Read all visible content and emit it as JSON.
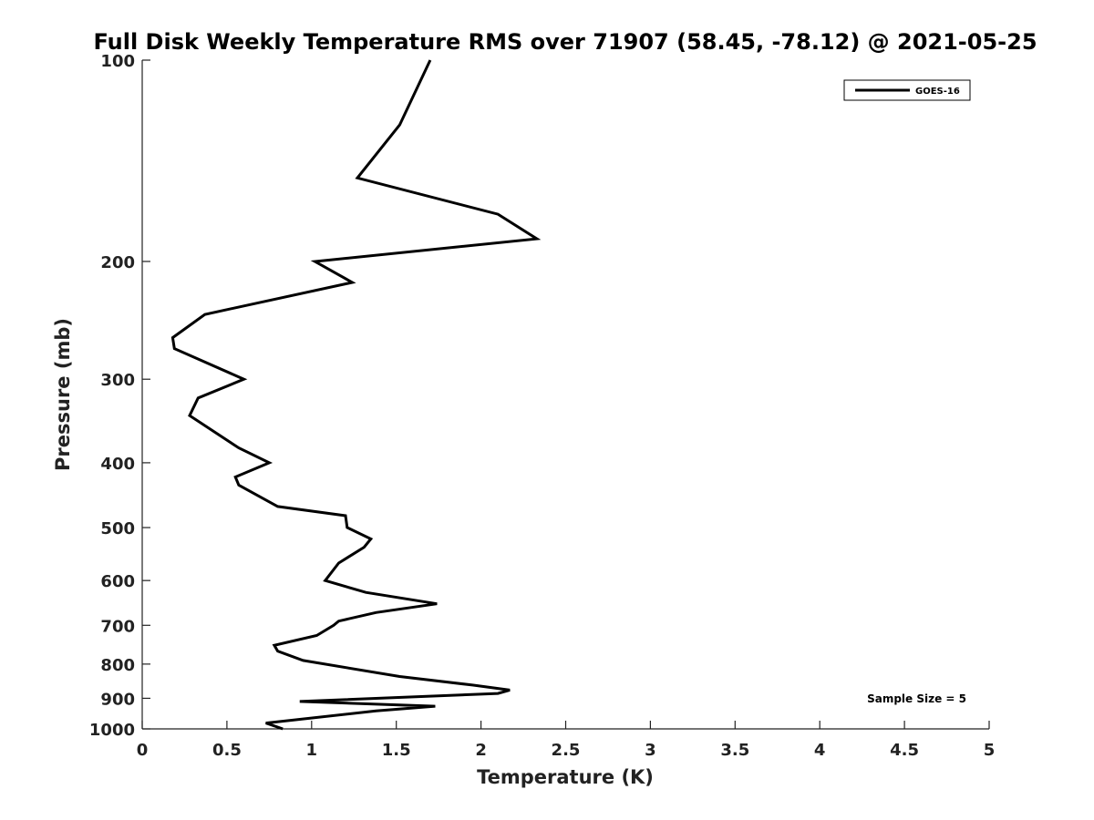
{
  "chart_data": {
    "type": "line",
    "title": "Full Disk Weekly Temperature RMS over 71907 (58.45, -78.12) @ 2021-05-25",
    "xlabel": "Temperature (K)",
    "ylabel": "Pressure (mb)",
    "xlim": [
      0,
      5
    ],
    "ylim": [
      1000,
      100
    ],
    "yscale": "log",
    "xticks": [
      0,
      0.5,
      1,
      1.5,
      2,
      2.5,
      3,
      3.5,
      4,
      4.5,
      5
    ],
    "xtick_labels": [
      "0",
      "0.5",
      "1",
      "1.5",
      "2",
      "2.5",
      "3",
      "3.5",
      "4",
      "4.5",
      "5"
    ],
    "yticks": [
      100,
      200,
      300,
      400,
      500,
      600,
      700,
      800,
      900,
      1000
    ],
    "ytick_labels": [
      "100",
      "200",
      "300",
      "400",
      "500",
      "600",
      "700",
      "800",
      "900",
      "1000"
    ],
    "legend_position": "top-right",
    "grid": false,
    "series": [
      {
        "name": "GOES-16",
        "color": "#000000",
        "points": [
          [
            1.7,
            100
          ],
          [
            1.52,
            125
          ],
          [
            1.27,
            150
          ],
          [
            2.1,
            170
          ],
          [
            2.33,
            185
          ],
          [
            1.02,
            200
          ],
          [
            1.24,
            215
          ],
          [
            0.37,
            240
          ],
          [
            0.18,
            260
          ],
          [
            0.19,
            270
          ],
          [
            0.6,
            300
          ],
          [
            0.33,
            320
          ],
          [
            0.28,
            340
          ],
          [
            0.57,
            380
          ],
          [
            0.75,
            400
          ],
          [
            0.55,
            420
          ],
          [
            0.57,
            432
          ],
          [
            0.8,
            465
          ],
          [
            1.2,
            480
          ],
          [
            1.21,
            500
          ],
          [
            1.35,
            520
          ],
          [
            1.31,
            535
          ],
          [
            1.16,
            565
          ],
          [
            1.08,
            600
          ],
          [
            1.32,
            625
          ],
          [
            1.74,
            650
          ],
          [
            1.38,
            670
          ],
          [
            1.16,
            690
          ],
          [
            1.13,
            700
          ],
          [
            1.03,
            725
          ],
          [
            0.78,
            750
          ],
          [
            0.8,
            765
          ],
          [
            0.95,
            790
          ],
          [
            1.52,
            835
          ],
          [
            1.95,
            860
          ],
          [
            2.17,
            875
          ],
          [
            2.1,
            885
          ],
          [
            0.93,
            910
          ],
          [
            1.73,
            925
          ],
          [
            1.38,
            940
          ],
          [
            0.73,
            980
          ],
          [
            0.83,
            1000
          ]
        ]
      }
    ],
    "annotation": "Sample Size = 5"
  }
}
